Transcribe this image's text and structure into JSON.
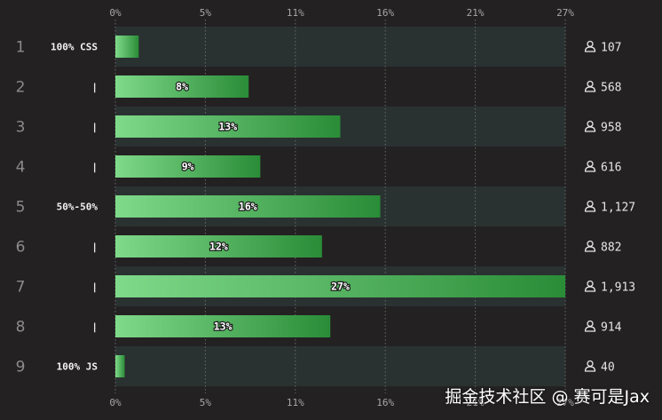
{
  "chart_data": {
    "type": "bar",
    "orientation": "horizontal",
    "x_ticks": [
      "0%",
      "5%",
      "11%",
      "16%",
      "21%",
      "27%"
    ],
    "xlim": [
      0,
      27
    ],
    "rows": [
      {
        "num": "1",
        "label": "100% CSS",
        "value": 1.4,
        "value_label": "",
        "count": "107"
      },
      {
        "num": "2",
        "label": "|",
        "value": 8,
        "value_label": "8%",
        "count": "568"
      },
      {
        "num": "3",
        "label": "|",
        "value": 13.5,
        "value_label": "13%",
        "count": "958"
      },
      {
        "num": "4",
        "label": "|",
        "value": 8.7,
        "value_label": "9%",
        "count": "616"
      },
      {
        "num": "5",
        "label": "50%-50%",
        "value": 15.9,
        "value_label": "16%",
        "count": "1,127"
      },
      {
        "num": "6",
        "label": "|",
        "value": 12.4,
        "value_label": "12%",
        "count": "882"
      },
      {
        "num": "7",
        "label": "|",
        "value": 27,
        "value_label": "27%",
        "count": "1,913"
      },
      {
        "num": "8",
        "label": "|",
        "value": 12.9,
        "value_label": "13%",
        "count": "914"
      },
      {
        "num": "9",
        "label": "100% JS",
        "value": 0.56,
        "value_label": "",
        "count": "40"
      }
    ],
    "colors": {
      "bar_start": "#7fda8a",
      "bar_end": "#2a8c37",
      "band_light": "#2a3131",
      "band_dark": "#232122",
      "grid": "#6a6a6a"
    },
    "count_icon": "user-icon"
  },
  "watermark": "掘金技术社区 @ 赛可是Jax"
}
